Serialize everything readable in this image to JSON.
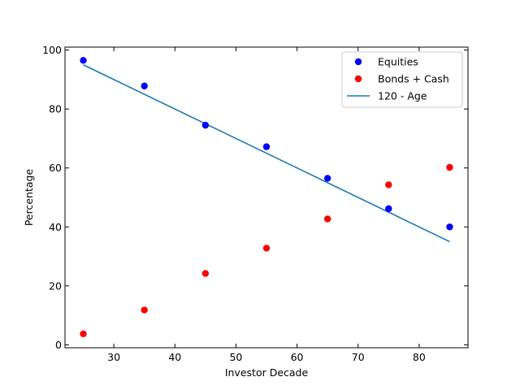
{
  "chart_data": {
    "type": "scatter",
    "title": "",
    "xlabel": "Investor Decade",
    "ylabel": "Percentage",
    "xlim": [
      22,
      88
    ],
    "ylim": [
      -1,
      101
    ],
    "grid": false,
    "legend_position": "top-right",
    "x_ticks": [
      30,
      40,
      50,
      60,
      70,
      80
    ],
    "y_ticks": [
      0,
      20,
      40,
      60,
      80,
      100
    ],
    "series": [
      {
        "name": "Equities",
        "kind": "scatter",
        "color": "#0000ff",
        "x": [
          25,
          35,
          45,
          55,
          65,
          75,
          85
        ],
        "y": [
          96.5,
          87.8,
          74.5,
          67.2,
          56.5,
          46.2,
          40
        ]
      },
      {
        "name": "Bonds + Cash",
        "kind": "scatter",
        "color": "#ff0000",
        "x": [
          25,
          35,
          45,
          55,
          65,
          75,
          85
        ],
        "y": [
          3.7,
          11.8,
          24.2,
          32.8,
          42.7,
          54.3,
          60.2
        ]
      },
      {
        "name": "120 - Age",
        "kind": "line",
        "color": "#1f77b4",
        "x": [
          25,
          35,
          45,
          55,
          65,
          75,
          85
        ],
        "y": [
          95,
          85,
          75,
          65,
          55,
          45,
          35
        ]
      }
    ]
  }
}
